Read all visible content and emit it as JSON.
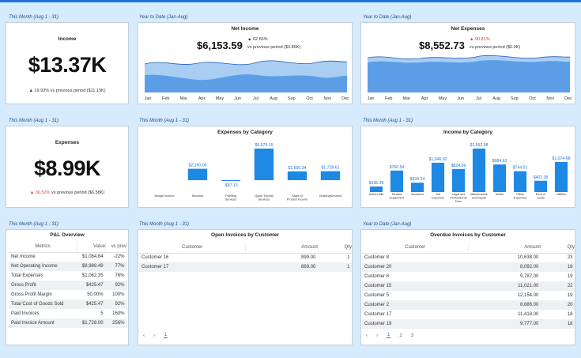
{
  "row1": {
    "income": {
      "section": "This Month (Aug 1 - 31)",
      "title": "Income",
      "value": "$13.37K",
      "change": "▲ 19.93%",
      "compare": "vs previous period ($11.15K)",
      "color": "#333333"
    },
    "net_income": {
      "section": "Year to Date (Jan-Aug)",
      "title": "Net Income",
      "value": "$6,153.59",
      "change": "▲ 62.66%",
      "compare": "vs previous period ($3.86K)",
      "months": [
        "Jan",
        "Feb",
        "Mar",
        "Apr",
        "May",
        "Jun",
        "Jul",
        "Aug",
        "Sep",
        "Oct",
        "Nov",
        "Dec"
      ]
    },
    "net_expenses": {
      "section": "Year to Date (Jan-Aug)",
      "title": "Net Expenses",
      "value": "$8,552.73",
      "change": "▲ 90.81%",
      "compare": "vs previous period ($6.9K)",
      "months": [
        "Jan",
        "Feb",
        "Mar",
        "Apr",
        "May",
        "Jun",
        "Jul",
        "Aug",
        "Sep",
        "Oct",
        "Nov",
        "Dec"
      ]
    }
  },
  "row2": {
    "expenses": {
      "section": "This Month (Aug 1 - 31)",
      "title": "Expenses",
      "value": "$8.99K",
      "change": "▲ 36.52%",
      "compare": "vs previous period ($6.58K)"
    },
    "expenses_by_category": {
      "section": "This Month (Aug 1 - 31)",
      "title": "Expenses by Category"
    },
    "income_by_category": {
      "section": "This Month (Aug 1 - 31)",
      "title": "Income by Category"
    }
  },
  "chart_data": [
    {
      "type": "bar",
      "title": "Expenses by Category",
      "categories": [
        "Design income",
        "Discount",
        "Painting Services",
        "Quick Tutorial Services",
        "Sales of Product Income",
        "DrawingServices"
      ],
      "values": [
        0,
        2190.06,
        -97.15,
        6079.15,
        1695.34,
        1728.61
      ],
      "labels": [
        "",
        "$2,190.06",
        "-$97.15",
        "$6,079.15",
        "$1,695.34",
        "$1,728.61"
      ],
      "color": "#1e88e5"
    },
    {
      "type": "bar",
      "title": "Income by Category",
      "categories": [
        "Automobile",
        "Rented Equipment",
        "Insurance",
        "Job expenses",
        "Legal and Professional Fees",
        "Maintenance and Repair",
        "Meals",
        "Office Expenses",
        "Rent or Lease",
        "Utilities"
      ],
      "values": [
        196.49,
        766.54,
        334.24,
        1046.92,
        824.09,
        1552.98,
        984.63,
        744.51,
        402.08,
        1074.68
      ],
      "labels": [
        "$196.49",
        "$766.54",
        "$334.24",
        "$1,046.92",
        "$824.09",
        "$1,552.98",
        "$984.63",
        "$744.51",
        "$402.08",
        "$1,074.68"
      ],
      "color": "#1e88e5"
    }
  ],
  "row3": {
    "pl": {
      "section": "This Month (Aug 1 - 31)",
      "title": "P&L Overview",
      "columns": [
        "Metrics",
        "Value",
        "vs prev"
      ],
      "rows": [
        [
          "Net Income",
          "$1,084.64",
          "-22%"
        ],
        [
          "Net Operating Income",
          "$8,989.49",
          "77%"
        ],
        [
          "Total Expenses",
          "$1,062.35",
          "76%"
        ],
        [
          "Gross Profit",
          "$425.47",
          "92%"
        ],
        [
          "Gross Profit Margin",
          "50.00%",
          "100%"
        ],
        [
          "Total Cost of Goods Sold",
          "$425.47",
          "92%"
        ],
        [
          "Paid Invoices",
          "5",
          "160%"
        ],
        [
          "Paid Invoice Amount",
          "$1,728.00",
          "256%"
        ]
      ]
    },
    "open": {
      "section": "This Month (Aug 1 - 31)",
      "title": "Open Invoices by Customer",
      "columns": [
        "Customer",
        "Amount",
        "Qty"
      ],
      "rows": [
        [
          "Customer 16",
          "899.00",
          "1"
        ],
        [
          "Customer 17",
          "869.00",
          "1"
        ]
      ],
      "pages": [
        "1"
      ]
    },
    "overdue": {
      "section": "Year to Date (Jan-Aug)",
      "title": "Overdue Invoices by Customer",
      "columns": [
        "Customer",
        "Amount",
        "Qty"
      ],
      "rows": [
        [
          "Customer 8",
          "10,638.00",
          "23"
        ],
        [
          "Customer 20",
          "8,092.00",
          "18"
        ],
        [
          "Customer 6",
          "9,787.00",
          "19"
        ],
        [
          "Customer 15",
          "11,021.00",
          "22"
        ],
        [
          "Customer 5",
          "12,154.00",
          "19"
        ],
        [
          "Customer 2",
          "8,686.00",
          "20"
        ],
        [
          "Customer 17",
          "11,418.00",
          "18"
        ],
        [
          "Customer 19",
          "9,777.00",
          "18"
        ]
      ],
      "pages": [
        "1",
        "2",
        "3"
      ]
    }
  },
  "pager_icons": [
    "chevron-left-icon",
    "chevron-right-icon"
  ],
  "colors": {
    "accent": "#1e73d8",
    "bar": "#1e88e5",
    "area_dark": "#5b9ee6",
    "area_light": "#a9cdf3",
    "background": "#d6ebfb",
    "negative": "#e23c3c"
  }
}
